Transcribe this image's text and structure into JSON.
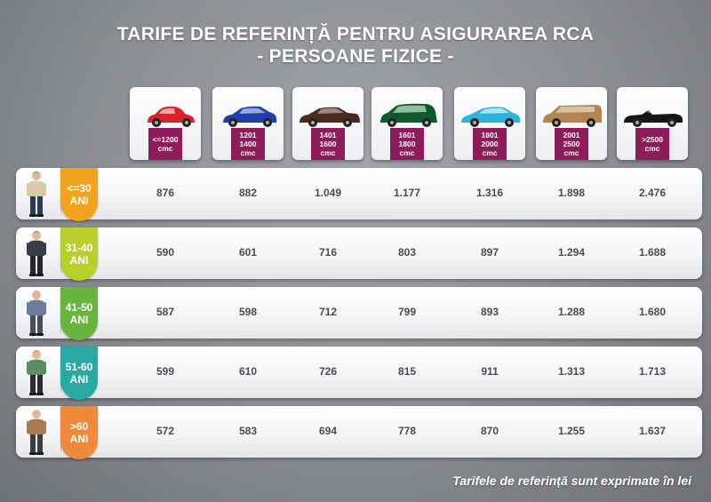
{
  "header": {
    "title_line1": "TARIFE DE REFERINȚĂ PENTRU ASIGURAREA RCA",
    "title_line2": "- PERSOANE FIZICE -"
  },
  "vehicles": [
    {
      "cc_line1": "<=1200",
      "cc_line2": "cmc",
      "cc_line3": "",
      "icon": "small-car-icon",
      "color": "#d6232d"
    },
    {
      "cc_line1": "1201",
      "cc_line2": "1400",
      "cc_line3": "cmc",
      "icon": "hatchback-car-icon",
      "color": "#1f3fa8"
    },
    {
      "cc_line1": "1401",
      "cc_line2": "1600",
      "cc_line3": "cmc",
      "icon": "sedan-car-icon",
      "color": "#4a2a1e"
    },
    {
      "cc_line1": "1601",
      "cc_line2": "1800",
      "cc_line3": "cmc",
      "icon": "minivan-car-icon",
      "color": "#0f5a2c"
    },
    {
      "cc_line1": "1801",
      "cc_line2": "2000",
      "cc_line3": "cmc",
      "icon": "coupe-car-icon",
      "color": "#2cb3dc"
    },
    {
      "cc_line1": "2001",
      "cc_line2": "2500",
      "cc_line3": "cmc",
      "icon": "station-wagon-car-icon",
      "color": "#b2844f"
    },
    {
      "cc_line1": ">2500",
      "cc_line2": "cmc",
      "cc_line3": "",
      "icon": "convertible-car-icon",
      "color": "#161616"
    }
  ],
  "age_groups": [
    {
      "age_line1": "<=30",
      "age_line2": "ANI",
      "color": "#f2a21d",
      "person_icon": "young-man-icon",
      "values": [
        "876",
        "882",
        "1.049",
        "1.177",
        "1.316",
        "1.898",
        "2.476"
      ]
    },
    {
      "age_line1": "31-40",
      "age_line2": "ANI",
      "color": "#b9cf2c",
      "person_icon": "man-in-suit-icon",
      "values": [
        "590",
        "601",
        "716",
        "803",
        "897",
        "1.294",
        "1.688"
      ]
    },
    {
      "age_line1": "41-50",
      "age_line2": "ANI",
      "color": "#67b43e",
      "person_icon": "middle-aged-man-icon",
      "values": [
        "587",
        "598",
        "712",
        "799",
        "893",
        "1.288",
        "1.680"
      ]
    },
    {
      "age_line1": "51-60",
      "age_line2": "ANI",
      "color": "#2aa9a4",
      "person_icon": "older-man-icon",
      "values": [
        "599",
        "610",
        "726",
        "815",
        "911",
        "1.313",
        "1.713"
      ]
    },
    {
      "age_line1": ">60",
      "age_line2": "ANI",
      "color": "#ef8a3c",
      "person_icon": "senior-man-icon",
      "values": [
        "572",
        "583",
        "694",
        "778",
        "870",
        "1.255",
        "1.637"
      ]
    }
  ],
  "footnote": "Tarifele de referință sunt exprimate în lei"
}
